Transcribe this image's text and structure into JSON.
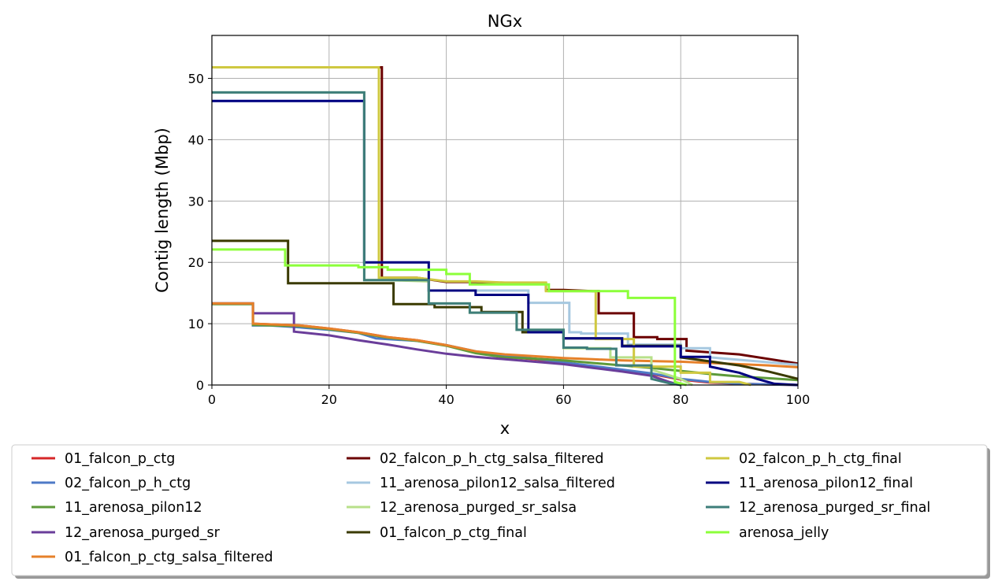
{
  "chart_data": {
    "type": "line",
    "title": "NGx",
    "xlabel": "x",
    "ylabel": "Contig length (Mbp)",
    "xlim": [
      0,
      100
    ],
    "ylim": [
      0,
      57
    ],
    "xticks": [
      0,
      20,
      40,
      60,
      80,
      100
    ],
    "yticks": [
      0,
      10,
      20,
      30,
      40,
      50
    ],
    "grid": true,
    "legend_position": "bottom",
    "series": [
      {
        "name": "01_falcon_p_ctg",
        "color": "#d62728",
        "x": [
          0,
          7,
          7,
          15,
          20,
          25,
          30,
          35,
          40,
          45,
          50,
          55,
          60,
          65,
          70,
          75,
          80,
          85,
          90,
          95,
          100
        ],
        "y": [
          13.3,
          13.3,
          10.0,
          9.7,
          9.2,
          8.6,
          7.8,
          7.3,
          6.5,
          5.4,
          4.6,
          4.2,
          3.6,
          3.0,
          2.4,
          1.8,
          0.9,
          0.4,
          0.2,
          0.1,
          0.0
        ]
      },
      {
        "name": "02_falcon_p_h_ctg",
        "color": "#4e7ac7",
        "x": [
          0,
          7,
          7,
          10,
          15,
          20,
          25,
          28,
          35,
          40,
          45,
          50,
          55,
          60,
          65,
          70,
          75,
          80,
          85,
          90,
          95,
          100
        ],
        "y": [
          13.3,
          13.3,
          9.7,
          9.7,
          9.4,
          9.0,
          8.5,
          7.6,
          7.2,
          6.5,
          5.5,
          4.8,
          4.3,
          3.7,
          3.1,
          2.5,
          1.9,
          1.0,
          0.5,
          0.2,
          0.1,
          0.0
        ]
      },
      {
        "name": "11_arenosa_pilon12",
        "color": "#5d9a3a",
        "x": [
          0,
          7,
          7,
          15,
          20,
          25,
          30,
          35,
          40,
          45,
          50,
          55,
          60,
          65,
          70,
          75,
          80,
          85,
          90,
          95,
          100
        ],
        "y": [
          13.2,
          13.2,
          9.8,
          9.6,
          9.1,
          8.5,
          7.7,
          7.2,
          6.4,
          5.2,
          4.5,
          4.3,
          4.0,
          3.6,
          3.2,
          2.8,
          2.3,
          1.8,
          1.4,
          1.1,
          0.8
        ]
      },
      {
        "name": "12_arenosa_purged_sr",
        "color": "#6a3d9a",
        "x": [
          0,
          7,
          7,
          14,
          14,
          20,
          25,
          30,
          35,
          40,
          45,
          50,
          55,
          60,
          65,
          70,
          75,
          78,
          80
        ],
        "y": [
          13.3,
          13.3,
          11.7,
          11.7,
          8.7,
          8.1,
          7.3,
          6.6,
          5.8,
          5.1,
          4.6,
          4.2,
          3.8,
          3.4,
          2.8,
          2.2,
          1.5,
          0.5,
          0.0
        ]
      },
      {
        "name": "01_falcon_p_ctg_salsa_filtered",
        "color": "#e6812a",
        "x": [
          0,
          7,
          7,
          15,
          20,
          25,
          30,
          35,
          40,
          45,
          50,
          55,
          60,
          65,
          70,
          75,
          80,
          85,
          90,
          95,
          100
        ],
        "y": [
          13.3,
          13.3,
          10.0,
          9.7,
          9.2,
          8.6,
          7.8,
          7.3,
          6.5,
          5.5,
          5.0,
          4.7,
          4.4,
          4.2,
          4.0,
          3.9,
          3.8,
          3.6,
          3.4,
          3.2,
          2.9
        ]
      },
      {
        "name": "02_falcon_p_h_ctg_salsa_filtered",
        "color": "#6b0000",
        "x": [
          0,
          29,
          29,
          35,
          40,
          45,
          50,
          57,
          57,
          60,
          65,
          66,
          66,
          72,
          72,
          76,
          76,
          81,
          81,
          90,
          100
        ],
        "y": [
          51.8,
          51.8,
          17.5,
          17.5,
          16.8,
          16.8,
          16.6,
          16.6,
          15.5,
          15.5,
          15.3,
          15.3,
          11.7,
          11.7,
          7.8,
          7.8,
          7.5,
          7.5,
          5.6,
          5.0,
          3.5
        ]
      },
      {
        "name": "11_arenosa_pilon12_salsa_filtered",
        "color": "#a6c8e0",
        "x": [
          0,
          26,
          26,
          37,
          37,
          54,
          54,
          61,
          61,
          63,
          63,
          71,
          71,
          80,
          80,
          85,
          85,
          100
        ],
        "y": [
          46.3,
          46.3,
          20.0,
          20.0,
          15.4,
          15.4,
          13.4,
          13.4,
          8.6,
          8.6,
          8.4,
          8.4,
          6.6,
          6.6,
          6.0,
          6.0,
          4.5,
          3.3
        ]
      },
      {
        "name": "12_arenosa_purged_sr_salsa",
        "color": "#b8e08a",
        "x": [
          0,
          26,
          26,
          30,
          37,
          37,
          44,
          44,
          52,
          52,
          60,
          60,
          68,
          68,
          75,
          75,
          80,
          82
        ],
        "y": [
          47.7,
          47.7,
          17.1,
          17.1,
          16.9,
          13.3,
          13.3,
          11.8,
          11.8,
          9.0,
          9.0,
          6.0,
          6.0,
          4.5,
          4.5,
          2.5,
          1.0,
          0.0
        ]
      },
      {
        "name": "01_falcon_p_ctg_final",
        "color": "#3a3a00",
        "x": [
          0,
          13,
          13,
          20,
          31,
          31,
          38,
          38,
          46,
          46,
          53,
          53,
          60,
          60,
          70,
          70,
          80,
          80,
          90,
          95,
          100
        ],
        "y": [
          23.5,
          23.5,
          16.6,
          16.6,
          16.6,
          13.2,
          13.2,
          12.7,
          12.7,
          11.9,
          11.9,
          8.6,
          8.6,
          7.6,
          7.6,
          6.4,
          6.4,
          4.5,
          3.2,
          2.2,
          1.0
        ]
      },
      {
        "name": "02_falcon_p_h_ctg_final",
        "color": "#cfc840",
        "x": [
          0,
          28.5,
          28.5,
          35,
          40,
          45,
          50,
          57,
          57,
          65.5,
          65.5,
          72,
          72,
          80,
          80,
          85,
          85,
          90,
          92
        ],
        "y": [
          51.8,
          51.8,
          17.5,
          17.5,
          16.9,
          16.9,
          16.7,
          16.7,
          15.3,
          15.3,
          7.5,
          7.5,
          3.0,
          3.0,
          2.0,
          2.0,
          0.5,
          0.5,
          0.0
        ]
      },
      {
        "name": "11_arenosa_pilon12_final",
        "color": "#000080",
        "x": [
          0,
          26,
          26,
          37,
          37,
          45,
          45,
          54,
          54,
          60,
          60,
          70,
          70,
          80,
          80,
          85,
          85,
          90,
          93,
          96,
          100
        ],
        "y": [
          46.3,
          46.3,
          20.0,
          20.0,
          15.4,
          15.4,
          14.7,
          14.7,
          8.6,
          8.6,
          7.6,
          7.6,
          6.3,
          6.3,
          4.6,
          4.6,
          3.0,
          2.0,
          1.0,
          0.2,
          0.0
        ]
      },
      {
        "name": "12_arenosa_purged_sr_final",
        "color": "#3e7e7a",
        "x": [
          0,
          26,
          26,
          37,
          37,
          44,
          44,
          52,
          52,
          60,
          60,
          64,
          64,
          69,
          69,
          75,
          75,
          78,
          80
        ],
        "y": [
          47.7,
          47.7,
          17.1,
          17.1,
          13.3,
          13.3,
          11.8,
          11.8,
          9.0,
          9.0,
          6.1,
          6.1,
          5.9,
          5.9,
          3.2,
          3.2,
          1.0,
          0.3,
          0.0
        ]
      },
      {
        "name": "arenosa_jelly",
        "color": "#8cff3a",
        "x": [
          0,
          12.5,
          12.5,
          20,
          25,
          25,
          30,
          30,
          40,
          40,
          44,
          44,
          57.5,
          57.5,
          71,
          71,
          79,
          79,
          81
        ],
        "y": [
          22.1,
          22.1,
          19.5,
          19.5,
          19.5,
          19.2,
          19.2,
          18.8,
          18.8,
          18.1,
          18.1,
          16.4,
          16.4,
          15.3,
          15.3,
          14.2,
          14.2,
          0.5,
          0.0
        ]
      }
    ]
  }
}
